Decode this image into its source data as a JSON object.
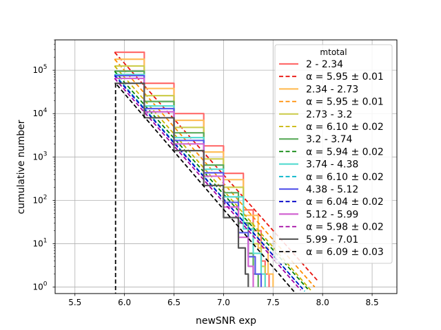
{
  "chart_data": {
    "type": "line",
    "xlabel": "newSNR exp",
    "ylabel": "cumulative number",
    "xlim": [
      5.3,
      8.75
    ],
    "ylim_log10": [
      -0.15,
      5.7
    ],
    "y_scale": "log",
    "grid": true,
    "legend_position": "top-right",
    "legend_title": "mtotal",
    "x_ticks": [
      {
        "value": 5.5,
        "label": "5.5"
      },
      {
        "value": 6.0,
        "label": "6.0"
      },
      {
        "value": 6.5,
        "label": "6.5"
      },
      {
        "value": 7.0,
        "label": "7.0"
      },
      {
        "value": 7.5,
        "label": "7.5"
      },
      {
        "value": 8.0,
        "label": "8.0"
      },
      {
        "value": 8.5,
        "label": "8.5"
      }
    ],
    "y_ticks": [
      {
        "exp": 0,
        "label": "10",
        "sup": "0"
      },
      {
        "exp": 1,
        "label": "10",
        "sup": "1"
      },
      {
        "exp": 2,
        "label": "10",
        "sup": "2"
      },
      {
        "exp": 3,
        "label": "10",
        "sup": "3"
      },
      {
        "exp": 4,
        "label": "10",
        "sup": "4"
      },
      {
        "exp": 5,
        "label": "10",
        "sup": "5"
      }
    ],
    "series": [
      {
        "name": "2 - 2.34",
        "kind": "data",
        "color": "#ff6b6b",
        "x": [
          5.9,
          6.2,
          6.5,
          6.8,
          7.0,
          7.2,
          7.3,
          7.38,
          7.42,
          7.46
        ],
        "y": [
          260000,
          50000,
          10000,
          1800,
          420,
          60,
          20,
          4,
          2,
          1
        ]
      },
      {
        "name": "α = 5.95 ± 0.01",
        "kind": "fit",
        "color": "#e8120c",
        "x": [
          5.9,
          7.95
        ],
        "y": [
          260000,
          1.4
        ]
      },
      {
        "name": "2.34 - 2.73",
        "kind": "data",
        "color": "#ffbe5a",
        "x": [
          5.9,
          6.2,
          6.5,
          6.8,
          7.0,
          7.2,
          7.35,
          7.45,
          7.5
        ],
        "y": [
          180000,
          38000,
          7000,
          1300,
          300,
          45,
          8,
          2,
          1
        ]
      },
      {
        "name": "α = 5.95 ± 0.01",
        "kind": "fit",
        "color": "#ff8c00",
        "x": [
          5.9,
          7.92
        ],
        "y": [
          180000,
          1.0
        ]
      },
      {
        "name": "2.73 - 3.2",
        "kind": "data",
        "color": "#cdcd50",
        "x": [
          5.9,
          6.2,
          6.5,
          6.8,
          7.0,
          7.2,
          7.3,
          7.38,
          7.42
        ],
        "y": [
          125000,
          26000,
          4800,
          900,
          200,
          30,
          10,
          3,
          1
        ]
      },
      {
        "name": "α = 6.10 ± 0.02",
        "kind": "fit",
        "color": "#c8b400",
        "x": [
          5.9,
          7.88
        ],
        "y": [
          125000,
          0.85
        ]
      },
      {
        "name": "3.2 - 3.74",
        "kind": "data",
        "color": "#5aaa5a",
        "x": [
          5.9,
          6.2,
          6.5,
          6.8,
          7.0,
          7.15,
          7.25,
          7.3,
          7.35
        ],
        "y": [
          95000,
          19000,
          3600,
          650,
          150,
          30,
          6,
          2,
          1
        ]
      },
      {
        "name": "α = 5.94 ± 0.02",
        "kind": "fit",
        "color": "#008000",
        "x": [
          5.9,
          7.85
        ],
        "y": [
          95000,
          0.9
        ]
      },
      {
        "name": "3.74 - 4.38",
        "kind": "data",
        "color": "#5adcd2",
        "x": [
          5.9,
          6.2,
          6.5,
          6.8,
          7.0,
          7.2,
          7.3,
          7.38,
          7.42
        ],
        "y": [
          80000,
          15000,
          2800,
          520,
          120,
          22,
          6,
          2,
          1
        ]
      },
      {
        "name": "α = 6.10 ± 0.02",
        "kind": "fit",
        "color": "#00b4c8",
        "x": [
          5.9,
          7.82
        ],
        "y": [
          80000,
          0.8
        ]
      },
      {
        "name": "4.38 - 5.12",
        "kind": "data",
        "color": "#5a5aeb",
        "x": [
          5.9,
          6.2,
          6.5,
          6.8,
          7.0,
          7.15,
          7.25,
          7.32,
          7.38
        ],
        "y": [
          75000,
          13000,
          2400,
          430,
          90,
          18,
          5,
          2,
          1
        ]
      },
      {
        "name": "α = 6.04 ± 0.02",
        "kind": "fit",
        "color": "#0000c8",
        "x": [
          5.9,
          7.8
        ],
        "y": [
          75000,
          0.9
        ]
      },
      {
        "name": "5.12 - 5.99",
        "kind": "data",
        "color": "#d264d2",
        "x": [
          5.9,
          6.2,
          6.5,
          6.8,
          7.0,
          7.15,
          7.25,
          7.3
        ],
        "y": [
          65000,
          11000,
          2000,
          360,
          70,
          14,
          3,
          1
        ]
      },
      {
        "name": "α = 5.98 ± 0.02",
        "kind": "fit",
        "color": "#a000a0",
        "x": [
          5.9,
          7.78
        ],
        "y": [
          65000,
          0.85
        ]
      },
      {
        "name": "5.99 - 7.01",
        "kind": "data",
        "color": "#555555",
        "x": [
          5.9,
          6.2,
          6.5,
          6.8,
          7.0,
          7.15,
          7.22,
          7.25
        ],
        "y": [
          50000,
          8000,
          1400,
          220,
          40,
          8,
          2,
          1
        ]
      },
      {
        "name": "α = 6.09 ± 0.03",
        "kind": "fit",
        "color": "#000000",
        "x": [
          5.91,
          5.91,
          7.73
        ],
        "y": [
          0.6,
          50000,
          0.7
        ]
      }
    ]
  }
}
